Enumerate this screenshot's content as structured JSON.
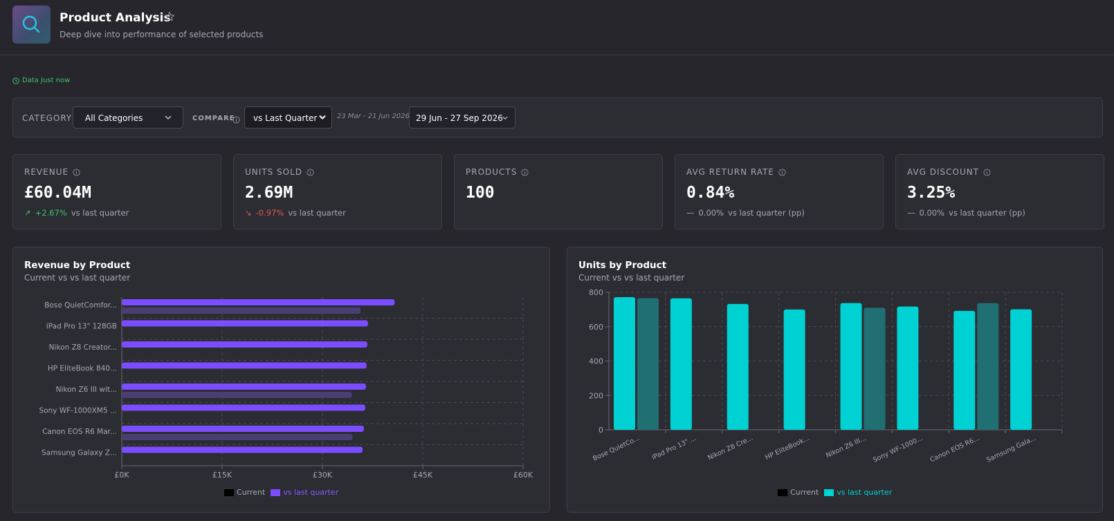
{
  "header": {
    "title": "Product Analysis",
    "subtitle": "Deep dive into performance of selected products"
  },
  "status": {
    "text": "Data Just now"
  },
  "filters": {
    "category_label": "CATEGORY",
    "category_value": "All Categories",
    "compare_label": "COMPARE",
    "compare_value": "vs Last Quarter",
    "compare_range": "23 Mar - 21 Jun 2026",
    "date_range": "29 Jun - 27 Sep 2026"
  },
  "kpis": [
    {
      "label": "REVENUE",
      "value": "£60.04M",
      "delta": "+2.67%",
      "delta_dir": "up",
      "delta_suffix": "vs last quarter"
    },
    {
      "label": "UNITS SOLD",
      "value": "2.69M",
      "delta": "-0.97%",
      "delta_dir": "down",
      "delta_suffix": "vs last quarter"
    },
    {
      "label": "PRODUCTS",
      "value": "100",
      "delta": "",
      "delta_dir": "none",
      "delta_suffix": ""
    },
    {
      "label": "AVG RETURN RATE",
      "value": "0.84%",
      "delta": "0.00%",
      "delta_dir": "flat",
      "delta_suffix": "vs last quarter (pp)"
    },
    {
      "label": "AVG DISCOUNT",
      "value": "3.25%",
      "delta": "0.00%",
      "delta_dir": "flat",
      "delta_suffix": "vs last quarter (pp)"
    }
  ],
  "colors": {
    "revenue_current": "#7c4dff",
    "revenue_previous": "#4a3f72",
    "units_current": "#00d2d3",
    "units_previous": "#1f6f73",
    "positive": "#3ec46d",
    "negative": "#e55757"
  },
  "chart_data": [
    {
      "type": "bar",
      "orientation": "horizontal",
      "title": "Revenue by Product",
      "subtitle": "Current vs vs last quarter",
      "categories": [
        "Bose QuietComfor...",
        "iPad Pro 13\" 128GB",
        "Nikon Z8 Creator...",
        "HP EliteBook 840...",
        "Nikon Z6 III wit...",
        "Sony WF-1000XM5 ...",
        "Canon EOS R6 Mar...",
        "Samsung Galaxy Z..."
      ],
      "x_ticks": [
        "£0K",
        "£15K",
        "£30K",
        "£45K",
        "£60K"
      ],
      "xlim": [
        0,
        60000
      ],
      "grid": true,
      "legend": [
        "Current",
        "vs last quarter"
      ],
      "legend_position": "bottom",
      "series": [
        {
          "name": "Current",
          "values": [
            40800,
            36800,
            36700,
            36600,
            36500,
            36400,
            36200,
            36000
          ]
        },
        {
          "name": "vs last quarter",
          "values": [
            35700,
            null,
            null,
            null,
            34400,
            null,
            34500,
            null
          ]
        }
      ]
    },
    {
      "type": "bar",
      "orientation": "vertical",
      "title": "Units by Product",
      "subtitle": "Current vs vs last quarter",
      "categories": [
        "Bose QuietCo...",
        "iPad Pro 13\" ...",
        "Nikon Z8 Cre...",
        "HP EliteBook...",
        "Nikon Z6 III...",
        "Sony WF-1000...",
        "Canon EOS R6...",
        "Samsung Gala..."
      ],
      "y_ticks": [
        "0",
        "200",
        "400",
        "600",
        "800"
      ],
      "ylim": [
        0,
        800
      ],
      "grid": true,
      "legend": [
        "Current",
        "vs last quarter"
      ],
      "legend_position": "bottom",
      "series": [
        {
          "name": "Current",
          "values": [
            772,
            765,
            732,
            700,
            737,
            717,
            692,
            701
          ]
        },
        {
          "name": "vs last quarter",
          "values": [
            766,
            null,
            null,
            null,
            710,
            null,
            737,
            null
          ]
        }
      ]
    }
  ]
}
